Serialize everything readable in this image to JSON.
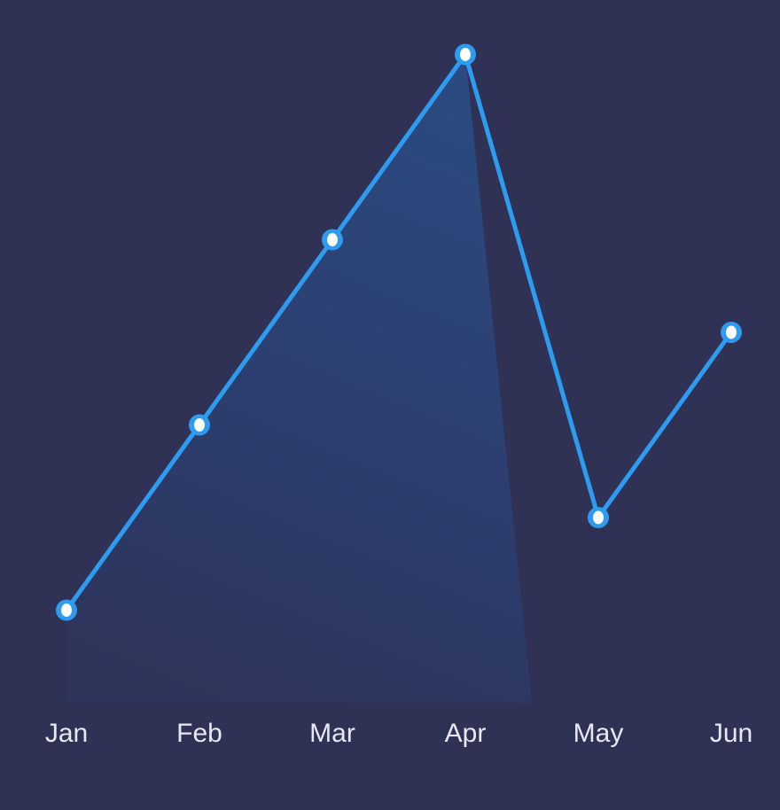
{
  "chart_data": {
    "type": "area",
    "categories": [
      "Jan",
      "Feb",
      "Mar",
      "Apr",
      "May",
      "Jun"
    ],
    "series": [
      {
        "values": [
          1,
          3,
          5,
          7,
          2,
          4
        ]
      }
    ],
    "ylim": [
      0,
      7
    ],
    "grid": false,
    "legend": "none",
    "y_axis_visible": false
  },
  "colors": {
    "background": "#2f3254",
    "line": "#2d9bf0",
    "marker_fill": "#ffffff",
    "area_top": "#2b4b82",
    "tick_label": "#e6e8f2"
  }
}
